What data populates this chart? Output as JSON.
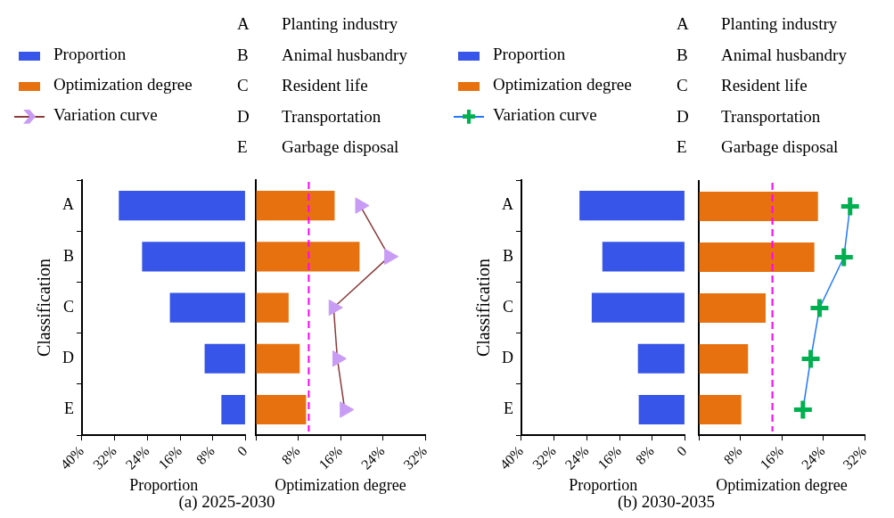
{
  "chart_data": [
    {
      "type": "bar",
      "orientation": "horizontal",
      "title": "(a) 2025-2030",
      "ylabel": "Classification",
      "xlabel": "Proportion",
      "categories": [
        "A",
        "B",
        "C",
        "D",
        "E"
      ],
      "series": [
        {
          "name": "Proportion",
          "color": "#3755e8",
          "values": [
            31,
            25.3,
            18.5,
            10,
            5.9
          ]
        }
      ],
      "xlim": [
        40,
        0
      ],
      "xticks": [
        {
          "value": 40,
          "label": "40%"
        },
        {
          "value": 32,
          "label": "32%"
        },
        {
          "value": 24,
          "label": "24%"
        },
        {
          "value": 16,
          "label": "16%"
        },
        {
          "value": 8,
          "label": "8%"
        },
        {
          "value": 0,
          "label": "0"
        }
      ],
      "legend": "top left",
      "grid": false
    },
    {
      "type": "bar",
      "orientation": "horizontal",
      "xlabel": "Optimization degree",
      "categories": [
        null,
        null,
        null,
        null,
        null
      ],
      "series": [
        {
          "name": "Optimization degree",
          "color": "#e8710f",
          "values": [
            14.9,
            19.6,
            6.2,
            8.3,
            9.5
          ]
        },
        {
          "name": "Variation curve",
          "type": "line",
          "color": "#8b3a3a",
          "colors": [
            "#c89cf5",
            "#c89cf5",
            "#c89cf5",
            "#c89cf5",
            "#c89cf5"
          ],
          "marker": "triangle",
          "values": [
            19.7,
            25.2,
            14.7,
            15.4,
            16.8
          ]
        }
      ],
      "xlim": [
        0,
        32
      ],
      "xticks": [
        {
          "value": 0,
          "label": null
        },
        {
          "value": 8,
          "label": "8%"
        },
        {
          "value": 16,
          "label": "16%"
        },
        {
          "value": 24,
          "label": "24%"
        },
        {
          "value": 32,
          "label": "32%"
        }
      ],
      "ref_lines": [
        {
          "axis": "x",
          "value": 10,
          "color": "#ff00ff",
          "line_style": "dashed"
        }
      ],
      "legend": "top left",
      "grid": false,
      "tick_labels": "x",
      "annotations": [
        "A Planting industry",
        "B Animal husbandry",
        "C Resident life",
        "D Transportation",
        "E Garbage disposal"
      ]
    },
    {
      "type": "bar",
      "orientation": "horizontal",
      "title": "(b) 2030-2035",
      "ylabel": "Classification",
      "xlabel": "Proportion",
      "categories": [
        "A",
        "B",
        "C",
        "D",
        "E"
      ],
      "series": [
        {
          "name": "Proportion",
          "color": "#3755e8",
          "values": [
            25.8,
            20.2,
            22.8,
            11.5,
            11.3
          ]
        }
      ],
      "xlim": [
        40,
        0
      ],
      "xticks": [
        {
          "value": 40,
          "label": "40%"
        },
        {
          "value": 32,
          "label": "32%"
        },
        {
          "value": 24,
          "label": "24%"
        },
        {
          "value": 16,
          "label": "16%"
        },
        {
          "value": 8,
          "label": "8%"
        },
        {
          "value": 0,
          "label": "0"
        }
      ],
      "legend": "top left",
      "grid": false
    },
    {
      "type": "bar",
      "orientation": "horizontal",
      "xlabel": "Optimization degree",
      "categories": [
        null,
        null,
        null,
        null,
        null
      ],
      "series": [
        {
          "name": "Optimization degree",
          "color": "#e8710f",
          "values": [
            23,
            22.3,
            12.9,
            9.5,
            8.2
          ]
        },
        {
          "name": "Variation curve",
          "type": "line",
          "color": "#1f77ff",
          "colors": [
            "#00b050",
            "#00b050",
            "#00b050",
            "#00b050",
            "#00b050"
          ],
          "marker": "cross",
          "values": [
            29.2,
            28,
            23.3,
            21.6,
            20.1
          ]
        }
      ],
      "xlim": [
        0,
        32
      ],
      "xticks": [
        {
          "value": 0,
          "label": null
        },
        {
          "value": 8,
          "label": "8%"
        },
        {
          "value": 16,
          "label": "16%"
        },
        {
          "value": 24,
          "label": "24%"
        },
        {
          "value": 32,
          "label": "32%"
        }
      ],
      "ref_lines": [
        {
          "axis": "x",
          "value": 14.2,
          "color": "#ff00ff",
          "line_style": "dashed"
        }
      ],
      "legend": "top left",
      "grid": false,
      "tick_labels": "x",
      "annotations": [
        "A Planting industry",
        "B Animal husbandry",
        "C Resident life",
        "D Transportation",
        "E Garbage disposal"
      ]
    }
  ]
}
